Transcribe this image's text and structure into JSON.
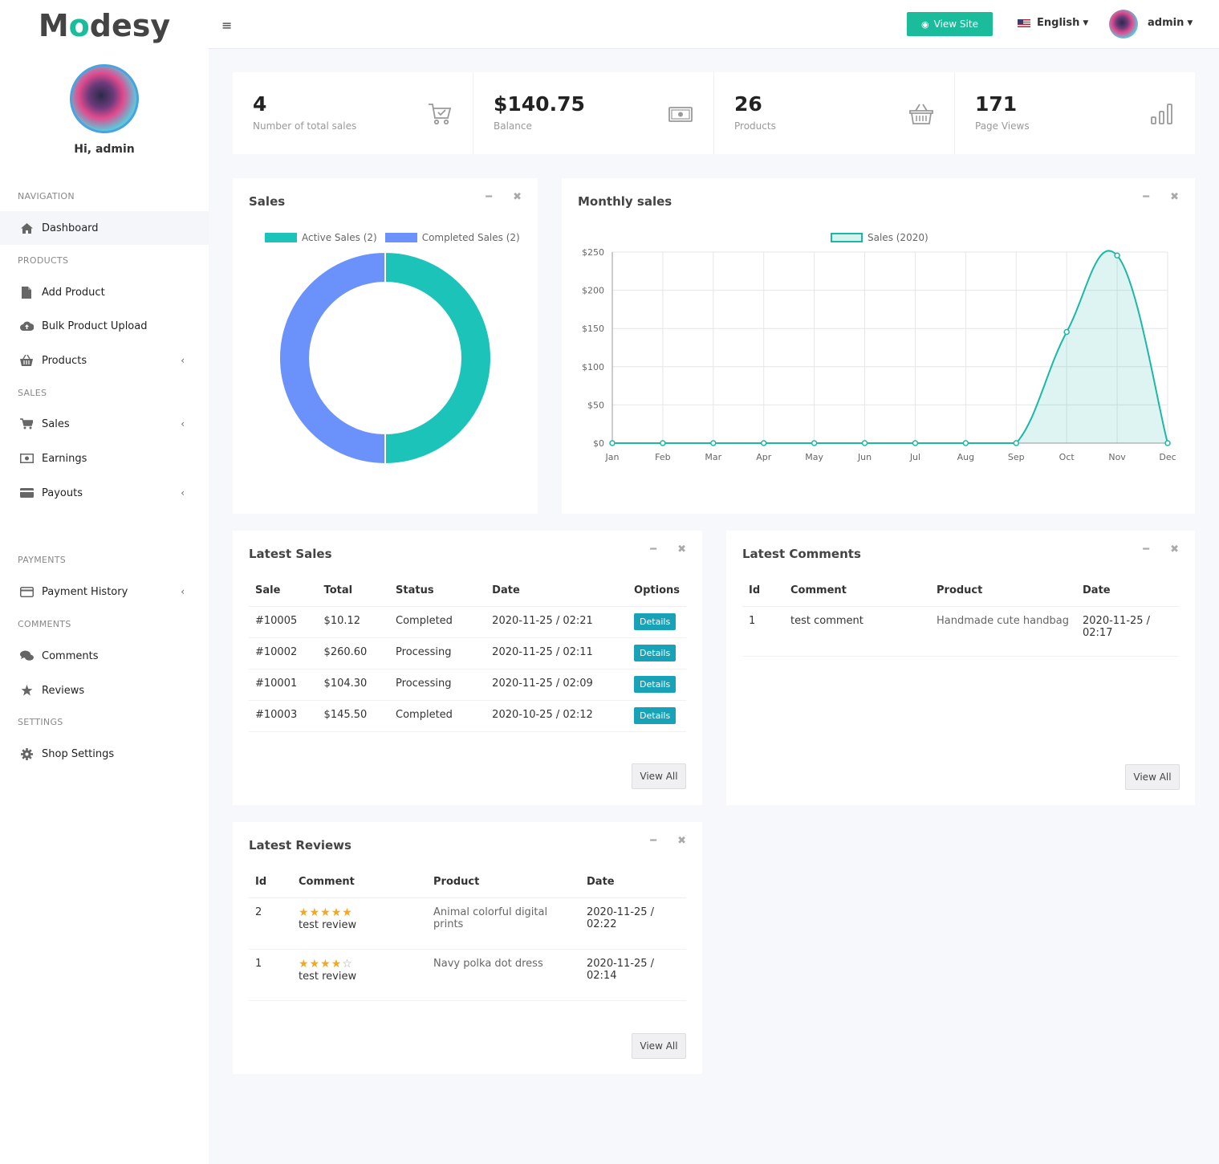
{
  "brand": {
    "logo_part1": "M",
    "logo_accent": "o",
    "logo_part2": "desy"
  },
  "sidebar": {
    "greeting": "Hi, admin",
    "sections": {
      "navigation": "NAVIGATION",
      "products": "PRODUCTS",
      "sales": "SALES",
      "payments": "PAYMENTS",
      "comments": "COMMENTS",
      "settings": "SETTINGS"
    },
    "items": {
      "dashboard": "Dashboard",
      "add_product": "Add Product",
      "bulk_upload": "Bulk Product Upload",
      "products": "Products",
      "sales": "Sales",
      "earnings": "Earnings",
      "payouts": "Payouts",
      "payment_history": "Payment History",
      "comments": "Comments",
      "reviews": "Reviews",
      "shop_settings": "Shop Settings"
    }
  },
  "header": {
    "view_site": "View Site",
    "language": "English",
    "user": "admin"
  },
  "stats": [
    {
      "value": "4",
      "label": "Number of total sales",
      "icon": "cart-icon"
    },
    {
      "value": "$140.75",
      "label": "Balance",
      "icon": "money-icon"
    },
    {
      "value": "26",
      "label": "Products",
      "icon": "basket-icon"
    },
    {
      "value": "171",
      "label": "Page Views",
      "icon": "bar-chart-icon"
    }
  ],
  "sales_panel": {
    "title": "Sales"
  },
  "monthly_panel": {
    "title": "Monthly sales"
  },
  "chart_data": [
    {
      "type": "pie",
      "title": "Sales",
      "labels": [
        "Active Sales (2)",
        "Completed Sales (2)"
      ],
      "values": [
        2,
        2
      ],
      "colors": [
        "#1cc3b8",
        "#6b92fb"
      ],
      "legend": "top"
    },
    {
      "type": "area",
      "title": "Monthly sales",
      "categories": [
        "Jan",
        "Feb",
        "Mar",
        "Apr",
        "May",
        "Jun",
        "Jul",
        "Aug",
        "Sep",
        "Oct",
        "Nov",
        "Dec"
      ],
      "series": [
        {
          "name": "Sales (2020)",
          "values": [
            0,
            0,
            0,
            0,
            0,
            0,
            0,
            0,
            0,
            145.5,
            245.5,
            0
          ]
        }
      ],
      "ylim": [
        0,
        250
      ],
      "yticks": [
        "$0",
        "$50",
        "$100",
        "$150",
        "$200",
        "$250"
      ],
      "ytick_values": [
        0,
        50,
        100,
        150,
        200,
        250
      ],
      "grid": true,
      "legend": "top",
      "color": "#1cb8a5"
    }
  ],
  "latest_sales": {
    "title": "Latest Sales",
    "headers": [
      "Sale",
      "Total",
      "Status",
      "Date",
      "Options"
    ],
    "rows": [
      {
        "sale": "#10005",
        "total": "$10.12",
        "status": "Completed",
        "date": "2020-11-25 / 02:21",
        "action": "Details"
      },
      {
        "sale": "#10002",
        "total": "$260.60",
        "status": "Processing",
        "date": "2020-11-25 / 02:11",
        "action": "Details"
      },
      {
        "sale": "#10001",
        "total": "$104.30",
        "status": "Processing",
        "date": "2020-11-25 / 02:09",
        "action": "Details"
      },
      {
        "sale": "#10003",
        "total": "$145.50",
        "status": "Completed",
        "date": "2020-10-25 / 02:12",
        "action": "Details"
      }
    ],
    "view_all": "View All"
  },
  "latest_comments": {
    "title": "Latest Comments",
    "headers": [
      "Id",
      "Comment",
      "Product",
      "Date"
    ],
    "rows": [
      {
        "id": "1",
        "comment": "test comment",
        "product": "Handmade cute handbag",
        "date": "2020-11-25 / 02:17"
      }
    ],
    "view_all": "View All"
  },
  "latest_reviews": {
    "title": "Latest Reviews",
    "headers": [
      "Id",
      "Comment",
      "Product",
      "Date"
    ],
    "rows": [
      {
        "id": "2",
        "stars": 5,
        "comment": "test review",
        "product": "Animal colorful digital prints",
        "date": "2020-11-25 / 02:22"
      },
      {
        "id": "1",
        "stars": 4,
        "comment": "test review",
        "product": "Navy polka dot dress",
        "date": "2020-11-25 / 02:14"
      }
    ],
    "view_all": "View All"
  }
}
